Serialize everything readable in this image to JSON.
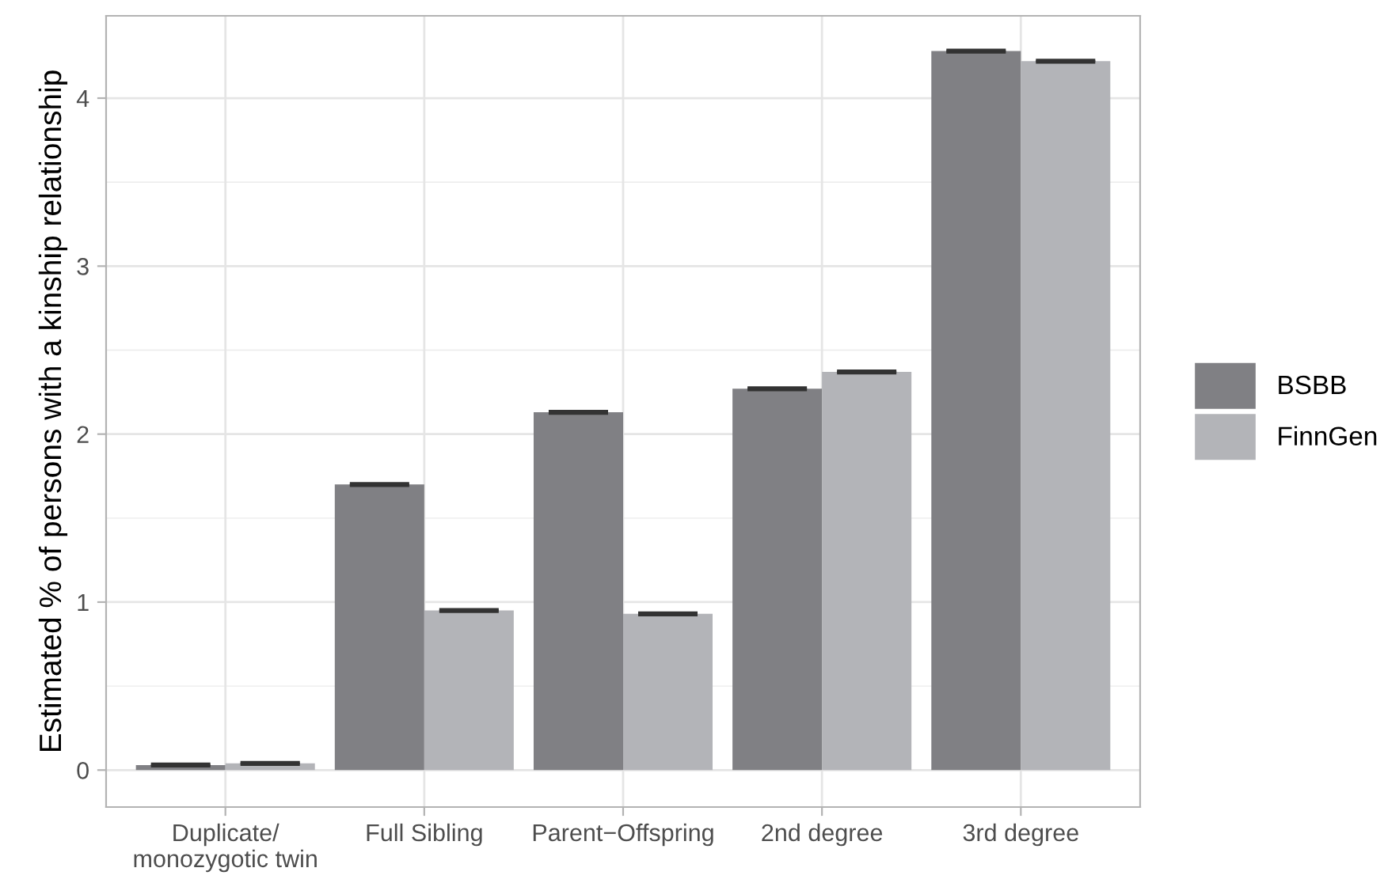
{
  "chart_data": {
    "type": "bar",
    "ylabel": "Estimated % of persons with a kinship relationship",
    "categories": [
      "Duplicate/\nmonozygotic twin",
      "Full Sibling",
      "Parent−Offspring",
      "2nd degree",
      "3rd degree"
    ],
    "series": [
      {
        "name": "BSBB",
        "color": "#808084",
        "values": [
          0.03,
          1.7,
          2.13,
          2.27,
          4.28
        ],
        "errors": [
          0.005,
          0.005,
          0.005,
          0.005,
          0.005
        ]
      },
      {
        "name": "FinnGen",
        "color": "#b3b4b8",
        "values": [
          0.04,
          0.95,
          0.93,
          2.37,
          4.22
        ],
        "errors": [
          0.005,
          0.005,
          0.005,
          0.005,
          0.005
        ]
      }
    ],
    "ylim": [
      -0.22,
      4.49
    ],
    "yticks": [
      0,
      1,
      2,
      3,
      4
    ],
    "grid": true,
    "legend": "right"
  }
}
